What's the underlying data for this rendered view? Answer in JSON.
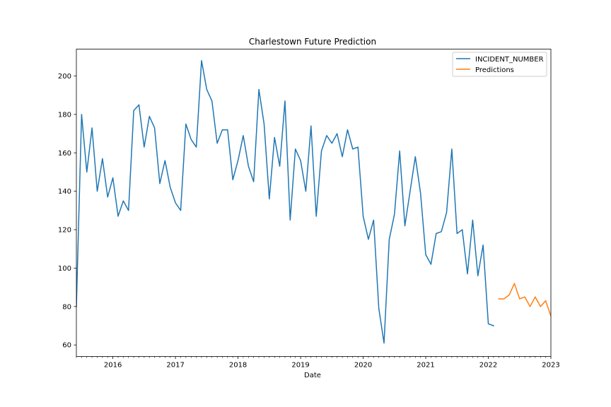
{
  "chart_data": {
    "type": "line",
    "title": "Charlestown Future Prediction",
    "xlabel": "Date",
    "ylabel": "",
    "x_axis": {
      "type": "date",
      "range": [
        "2015-06",
        "2023-01"
      ],
      "ticks": [
        "2016",
        "2017",
        "2018",
        "2019",
        "2020",
        "2021",
        "2022",
        "2023"
      ]
    },
    "ylim": [
      54,
      214
    ],
    "y_ticks": [
      60,
      80,
      100,
      120,
      140,
      160,
      180,
      200
    ],
    "grid": false,
    "legend": {
      "position": "top-right",
      "entries": [
        "INCIDENT_NUMBER",
        "Predictions"
      ]
    },
    "series": [
      {
        "name": "INCIDENT_NUMBER",
        "color": "#1f77b4",
        "points": [
          [
            "2015-06",
            80
          ],
          [
            "2015-07",
            180
          ],
          [
            "2015-08",
            150
          ],
          [
            "2015-09",
            173
          ],
          [
            "2015-10",
            140
          ],
          [
            "2015-11",
            157
          ],
          [
            "2015-12",
            137
          ],
          [
            "2016-01",
            147
          ],
          [
            "2016-02",
            127
          ],
          [
            "2016-03",
            135
          ],
          [
            "2016-04",
            130
          ],
          [
            "2016-05",
            182
          ],
          [
            "2016-06",
            185
          ],
          [
            "2016-07",
            163
          ],
          [
            "2016-08",
            179
          ],
          [
            "2016-09",
            173
          ],
          [
            "2016-10",
            144
          ],
          [
            "2016-11",
            156
          ],
          [
            "2016-12",
            142
          ],
          [
            "2017-01",
            134
          ],
          [
            "2017-02",
            130
          ],
          [
            "2017-03",
            175
          ],
          [
            "2017-04",
            167
          ],
          [
            "2017-05",
            163
          ],
          [
            "2017-06",
            208
          ],
          [
            "2017-07",
            193
          ],
          [
            "2017-08",
            187
          ],
          [
            "2017-09",
            165
          ],
          [
            "2017-10",
            172
          ],
          [
            "2017-11",
            172
          ],
          [
            "2017-12",
            146
          ],
          [
            "2018-01",
            156
          ],
          [
            "2018-02",
            169
          ],
          [
            "2018-03",
            153
          ],
          [
            "2018-04",
            145
          ],
          [
            "2018-05",
            193
          ],
          [
            "2018-06",
            175
          ],
          [
            "2018-07",
            136
          ],
          [
            "2018-08",
            168
          ],
          [
            "2018-09",
            153
          ],
          [
            "2018-10",
            187
          ],
          [
            "2018-11",
            125
          ],
          [
            "2018-12",
            162
          ],
          [
            "2019-01",
            156
          ],
          [
            "2019-02",
            140
          ],
          [
            "2019-03",
            174
          ],
          [
            "2019-04",
            127
          ],
          [
            "2019-05",
            161
          ],
          [
            "2019-06",
            169
          ],
          [
            "2019-07",
            165
          ],
          [
            "2019-08",
            170
          ],
          [
            "2019-09",
            158
          ],
          [
            "2019-10",
            172
          ],
          [
            "2019-11",
            162
          ],
          [
            "2019-12",
            163
          ],
          [
            "2020-01",
            127
          ],
          [
            "2020-02",
            115
          ],
          [
            "2020-03",
            125
          ],
          [
            "2020-04",
            79
          ],
          [
            "2020-05",
            61
          ],
          [
            "2020-06",
            115
          ],
          [
            "2020-07",
            128
          ],
          [
            "2020-08",
            161
          ],
          [
            "2020-09",
            122
          ],
          [
            "2020-10",
            140
          ],
          [
            "2020-11",
            158
          ],
          [
            "2020-12",
            139
          ],
          [
            "2021-01",
            107
          ],
          [
            "2021-02",
            102
          ],
          [
            "2021-03",
            118
          ],
          [
            "2021-04",
            119
          ],
          [
            "2021-05",
            129
          ],
          [
            "2021-06",
            162
          ],
          [
            "2021-07",
            118
          ],
          [
            "2021-08",
            120
          ],
          [
            "2021-09",
            97
          ],
          [
            "2021-10",
            125
          ],
          [
            "2021-11",
            96
          ],
          [
            "2021-12",
            112
          ],
          [
            "2022-01",
            71
          ],
          [
            "2022-02",
            70
          ]
        ]
      },
      {
        "name": "Predictions",
        "color": "#ff7f0e",
        "points": [
          [
            "2022-03",
            84
          ],
          [
            "2022-04",
            84
          ],
          [
            "2022-05",
            86
          ],
          [
            "2022-06",
            92
          ],
          [
            "2022-07",
            84
          ],
          [
            "2022-08",
            85
          ],
          [
            "2022-09",
            80
          ],
          [
            "2022-10",
            85
          ],
          [
            "2022-11",
            80
          ],
          [
            "2022-12",
            83
          ],
          [
            "2023-01",
            75
          ],
          [
            "2023-02",
            75
          ]
        ]
      }
    ]
  }
}
